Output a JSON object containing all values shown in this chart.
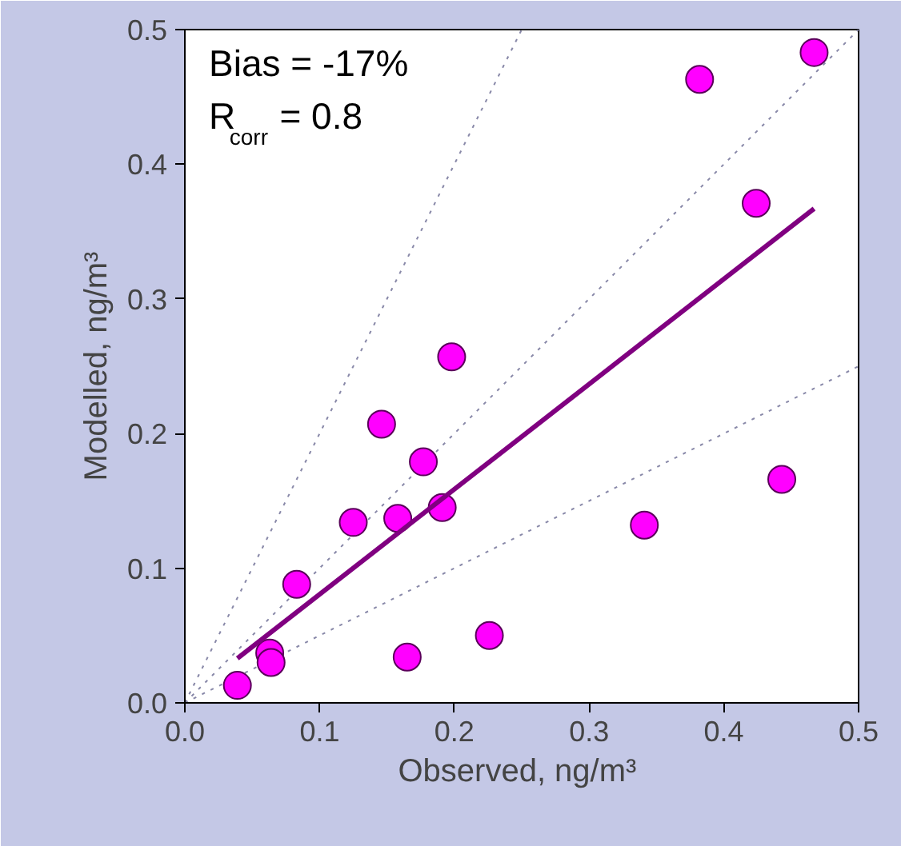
{
  "chart_data": {
    "type": "scatter",
    "xlabel": "Observed,  ng/m³",
    "ylabel": "Modelled, ng/m³",
    "xlim": [
      0,
      0.5
    ],
    "ylim": [
      0,
      0.5
    ],
    "xticks": [
      {
        "value": 0,
        "label": "0.0"
      },
      0.1,
      0.2,
      0.3,
      0.4,
      0.5
    ],
    "yticks": [
      {
        "value": 0,
        "label": "0.0"
      },
      0.1,
      0.2,
      0.3,
      0.4,
      0.5
    ],
    "grid": false,
    "annotations": [
      "Bias = -17%",
      "R$_{corr}$ = 0.8"
    ],
    "series": [
      {
        "type": "line",
        "marker": "none",
        "line_style": "dotted",
        "color": "#8888a8",
        "x": [
          0,
          0.25
        ],
        "values": [
          0,
          0.5
        ]
      },
      {
        "type": "line",
        "marker": "none",
        "line_style": "dotted",
        "color": "#8888a8",
        "x": [
          0,
          0.5
        ],
        "values": [
          0,
          0.5
        ]
      },
      {
        "type": "line",
        "marker": "none",
        "line_style": "dotted",
        "color": "#8888a8",
        "x": [
          0,
          0.5
        ],
        "values": [
          0,
          0.25
        ]
      },
      {
        "marker": "circle",
        "color": "#ff00ff",
        "x": [
          0.039,
          0.063,
          0.064,
          0.083,
          0.125,
          0.146,
          0.158,
          0.165,
          0.177,
          0.191,
          0.198,
          0.226,
          0.341,
          0.382,
          0.424,
          0.443,
          0.467
        ],
        "values": [
          0.013,
          0.037,
          0.03,
          0.088,
          0.134,
          0.207,
          0.137,
          0.034,
          0.179,
          0.145,
          0.257,
          0.05,
          0.132,
          0.463,
          0.371,
          0.166,
          0.483
        ]
      },
      {
        "type": "line",
        "marker": "none",
        "line_style": "solid",
        "color": "#800080",
        "x": [
          0.039,
          0.467
        ],
        "values": [
          0.033,
          0.367
        ]
      }
    ]
  }
}
